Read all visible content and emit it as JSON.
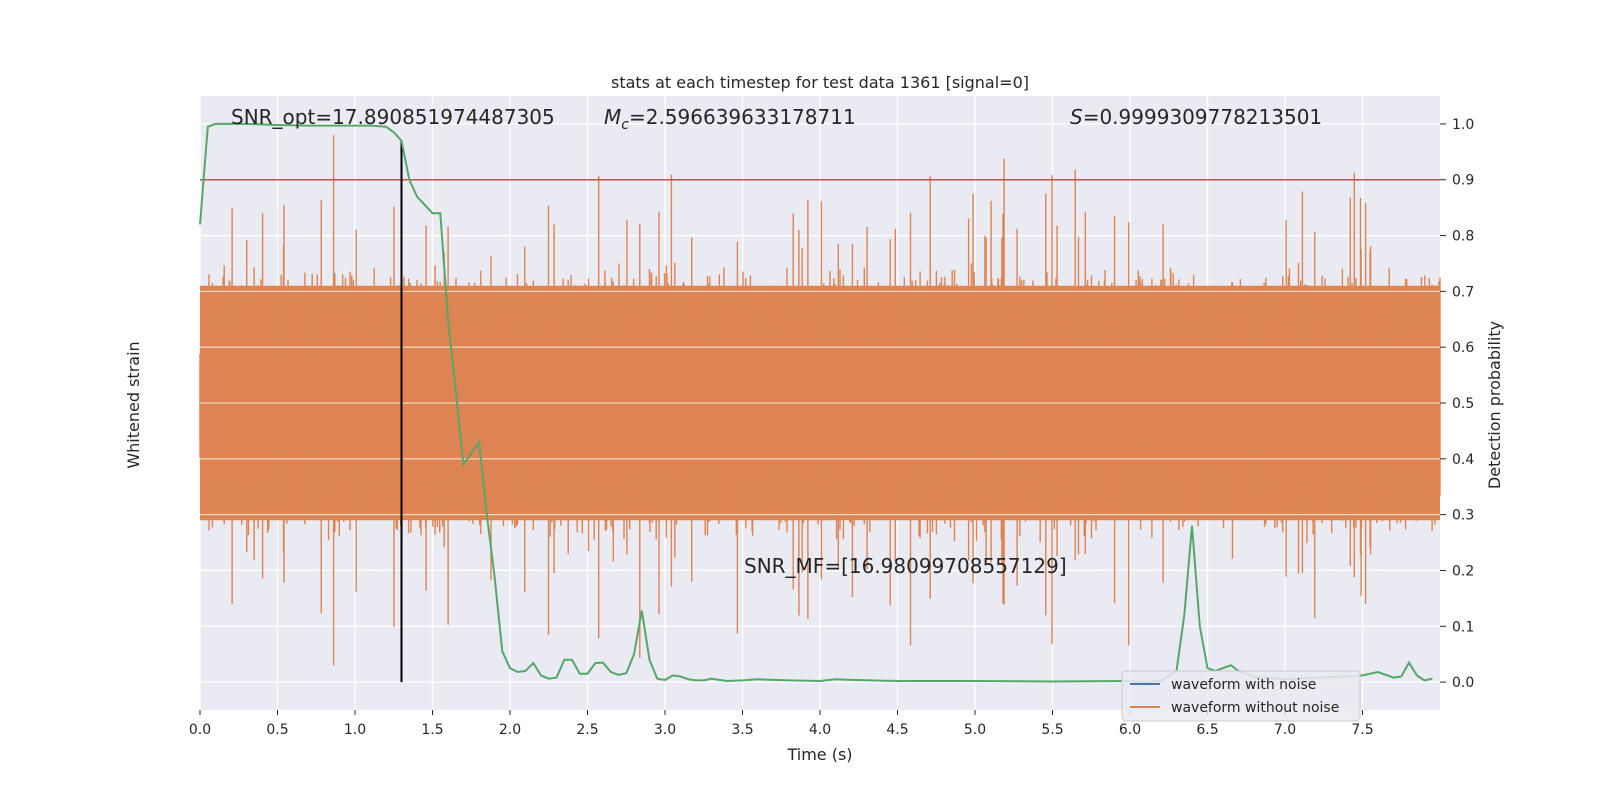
{
  "chart_data": {
    "type": "line",
    "title": "stats at each timestep for test data 1361 [signal=0]",
    "xlabel": "Time (s)",
    "ylabel_left": "Whitened strain",
    "ylabel_right": "Detection probability",
    "xlim": [
      0,
      8.0
    ],
    "ylim_right": [
      -0.05,
      1.05
    ],
    "x_ticks": [
      "0.0",
      "0.5",
      "1.0",
      "1.5",
      "2.0",
      "2.5",
      "3.0",
      "3.5",
      "4.0",
      "4.5",
      "5.0",
      "5.5",
      "6.0",
      "6.5",
      "7.0",
      "7.5"
    ],
    "x_tick_values": [
      0,
      0.5,
      1.0,
      1.5,
      2.0,
      2.5,
      3.0,
      3.5,
      4.0,
      4.5,
      5.0,
      5.5,
      6.0,
      6.5,
      7.0,
      7.5
    ],
    "y_right_ticks": [
      "0.0",
      "0.1",
      "0.2",
      "0.3",
      "0.4",
      "0.5",
      "0.6",
      "0.7",
      "0.8",
      "0.9",
      "1.0"
    ],
    "y_right_tick_values": [
      0,
      0.1,
      0.2,
      0.3,
      0.4,
      0.5,
      0.6,
      0.7,
      0.8,
      0.9,
      1.0
    ],
    "annotations": {
      "snr_opt": "SNR_opt=17.890851974487305",
      "mc_symbol": "M",
      "mc_sub": "c",
      "mc_value": "=2.596639633178711",
      "s_symbol": "S",
      "s_value": "=0.9999309778213501",
      "snr_mf": "SNR_MF=[16.98099708557129]"
    },
    "threshold": 0.9,
    "event_time": 1.3,
    "legend": {
      "placement": "lower right",
      "items": [
        {
          "label": "waveform with noise",
          "color": "#4c72b0"
        },
        {
          "label": "waveform without noise",
          "color": "#dd8452"
        }
      ]
    },
    "colors": {
      "background": "#eaeaf2",
      "grid": "#ffffff",
      "waveform_without_noise": "#dd8452",
      "waveform_with_noise": "#4c72b0",
      "detection_probability": "#55a868",
      "threshold": "#c44e52",
      "event_line": "#000000"
    },
    "series": [
      {
        "name": "Detection probability",
        "axis": "right",
        "x": [
          0.0,
          0.05,
          0.1,
          0.2,
          0.3,
          0.5,
          0.7,
          0.9,
          1.1,
          1.2,
          1.25,
          1.3,
          1.35,
          1.4,
          1.5,
          1.55,
          1.6,
          1.65,
          1.7,
          1.75,
          1.8,
          1.85,
          1.9,
          1.95,
          2.0,
          2.05,
          2.1,
          2.15,
          2.2,
          2.25,
          2.3,
          2.35,
          2.4,
          2.45,
          2.5,
          2.55,
          2.6,
          2.65,
          2.7,
          2.75,
          2.8,
          2.85,
          2.9,
          2.95,
          3.0,
          3.05,
          3.1,
          3.15,
          3.2,
          3.25,
          3.3,
          3.35,
          3.4,
          3.5,
          3.6,
          3.8,
          4.0,
          4.1,
          4.2,
          4.5,
          5.0,
          5.5,
          6.0,
          6.1,
          6.2,
          6.3,
          6.35,
          6.4,
          6.45,
          6.5,
          6.55,
          6.6,
          6.65,
          6.7,
          6.8,
          7.0,
          7.2,
          7.4,
          7.5,
          7.6,
          7.7,
          7.75,
          7.8,
          7.85,
          7.9,
          7.95
        ],
        "y": [
          0.82,
          0.995,
          1.0,
          1.0,
          1.0,
          0.998,
          0.997,
          0.997,
          0.997,
          0.995,
          0.985,
          0.97,
          0.9,
          0.87,
          0.84,
          0.84,
          0.65,
          0.52,
          0.39,
          0.41,
          0.43,
          0.3,
          0.19,
          0.055,
          0.025,
          0.018,
          0.02,
          0.034,
          0.012,
          0.006,
          0.008,
          0.04,
          0.04,
          0.015,
          0.015,
          0.034,
          0.035,
          0.018,
          0.013,
          0.016,
          0.05,
          0.128,
          0.04,
          0.006,
          0.004,
          0.012,
          0.01,
          0.005,
          0.003,
          0.003,
          0.006,
          0.004,
          0.002,
          0.003,
          0.005,
          0.003,
          0.002,
          0.005,
          0.004,
          0.002,
          0.002,
          0.001,
          0.002,
          0.0,
          0.002,
          0.02,
          0.12,
          0.28,
          0.1,
          0.025,
          0.02,
          0.025,
          0.03,
          0.02,
          0.01,
          0.005,
          0.008,
          0.01,
          0.012,
          0.018,
          0.008,
          0.01,
          0.035,
          0.012,
          0.003,
          0.006
        ]
      }
    ]
  }
}
